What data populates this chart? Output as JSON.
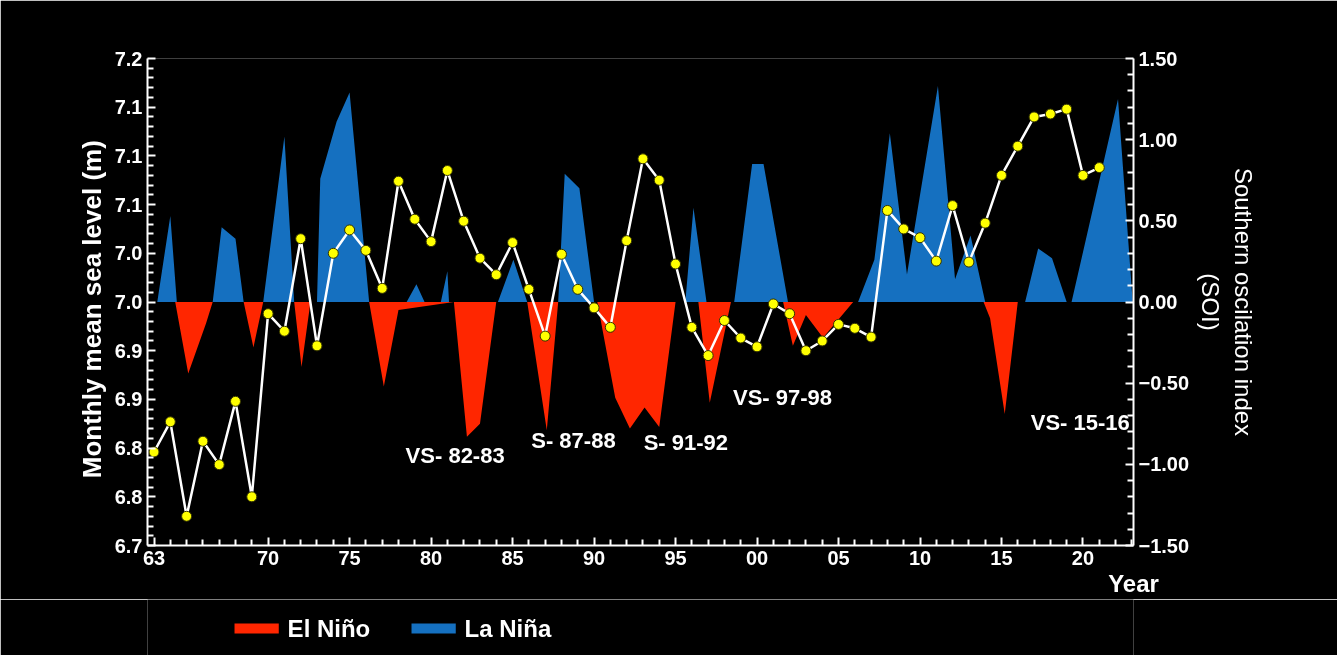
{
  "chart_data": {
    "type": "line",
    "xlabel": "Year",
    "ylabel": "Monthly  mean sea level  (m)",
    "y2label": "Southern oscilation index\n(SOI)",
    "xlim": [
      1962.6,
      2023.1
    ],
    "xticks": [
      {
        "value": 1963,
        "label": "63"
      },
      {
        "value": 1970,
        "label": "70"
      },
      {
        "value": 1975,
        "label": "75"
      },
      {
        "value": 1980,
        "label": "80"
      },
      {
        "value": 1985,
        "label": "85"
      },
      {
        "value": 1990,
        "label": "90"
      },
      {
        "value": 1995,
        "label": "95"
      },
      {
        "value": 2000,
        "label": "00"
      },
      {
        "value": 2005,
        "label": "05"
      },
      {
        "value": 2010,
        "label": "10"
      },
      {
        "value": 2015,
        "label": "15"
      },
      {
        "value": 2020,
        "label": "20"
      }
    ],
    "ylim": [
      6.7,
      7.2
    ],
    "yticks": [
      {
        "value": 6.7,
        "label": "6.7"
      },
      {
        "value": 6.75,
        "label": "6.8"
      },
      {
        "value": 6.8,
        "label": "6.8"
      },
      {
        "value": 6.85,
        "label": "6.9"
      },
      {
        "value": 6.9,
        "label": "6.9"
      },
      {
        "value": 6.95,
        "label": "7.0"
      },
      {
        "value": 7.0,
        "label": "7.0"
      },
      {
        "value": 7.05,
        "label": "7.1"
      },
      {
        "value": 7.1,
        "label": "7.1"
      },
      {
        "value": 7.15,
        "label": "7.1"
      },
      {
        "value": 7.2,
        "label": "7.2"
      }
    ],
    "y2lim": [
      -1.5,
      1.5
    ],
    "y2ticks": [
      {
        "value": -1.5,
        "label": "−1.50"
      },
      {
        "value": -1.0,
        "label": "−1.00"
      },
      {
        "value": -0.5,
        "label": "−0.50"
      },
      {
        "value": 0,
        "label": "0.00"
      },
      {
        "value": 0.5,
        "label": "0.50"
      },
      {
        "value": 1.0,
        "label": "1.00"
      },
      {
        "value": 1.5,
        "label": "1.50"
      }
    ],
    "grid": false,
    "legend": "bottom",
    "series": [
      {
        "name": "El Niño",
        "type": "area",
        "axis": "y2",
        "color": "#ff2600",
        "x": [
          1964.3,
          1965.1,
          1966.2,
          1966.6,
          1968.5,
          1969.1,
          1969.7,
          1971.6,
          1972.05,
          1972.6,
          1976.2,
          1977.1,
          1978.0,
          1981.4,
          1982.2,
          1983.0,
          1984.0,
          1985.9,
          1987.1,
          1987.8,
          1990.2,
          1991.3,
          1992.2,
          1993.1,
          1994.0,
          1995.0,
          1996.4,
          1997.1,
          1998.4,
          2001.6,
          2002.2,
          2003.0,
          2004.05,
          2005.9,
          2013.9,
          2014.3,
          2015.2,
          2016.0
        ],
        "values": [
          0,
          -0.44,
          -0.13,
          0,
          0,
          -0.28,
          0,
          0,
          -0.4,
          0,
          0,
          -0.52,
          -0.05,
          0,
          -0.83,
          -0.75,
          0,
          0,
          -0.79,
          0,
          0,
          -0.59,
          -0.78,
          -0.65,
          -0.77,
          0,
          0,
          -0.62,
          0,
          0,
          -0.27,
          -0.08,
          -0.22,
          0,
          0,
          -0.1,
          -0.69,
          0
        ]
      },
      {
        "name": "La Niña",
        "type": "area",
        "axis": "y2",
        "color": "#1570c0",
        "x": [
          1963.2,
          1964.0,
          1964.4,
          1966.6,
          1967.15,
          1968.0,
          1968.5,
          1969.7,
          1971.0,
          1971.6,
          1973.0,
          1973.2,
          1974.2,
          1975.0,
          1976.2,
          1978.5,
          1979.1,
          1979.6,
          1980.6,
          1981.0,
          1981.1,
          1984.1,
          1985.05,
          1985.9,
          1987.8,
          1988.2,
          1989.1,
          1990.0,
          1995.6,
          1996.1,
          1996.9,
          1998.6,
          1999.7,
          2000.4,
          2001.9,
          2006.2,
          2007.2,
          2008.15,
          2009.2,
          2011.1,
          2012.15,
          2013.1,
          2014.0,
          2016.45,
          2017.25,
          2018.1,
          2019.0,
          2019.3,
          2022.15,
          2023.05
        ],
        "values": [
          0,
          0.53,
          0,
          0,
          0.46,
          0.39,
          0,
          0,
          1.02,
          0,
          0,
          0.76,
          1.11,
          1.29,
          0,
          0,
          0.11,
          0,
          0,
          0.19,
          0,
          0,
          0.26,
          0,
          0,
          0.79,
          0.7,
          0,
          0,
          0.58,
          0,
          0,
          0.85,
          0.85,
          0,
          0,
          0.26,
          1.04,
          0.17,
          1.33,
          0.14,
          0.41,
          0,
          0,
          0.33,
          0.27,
          0,
          0,
          1.25,
          0
        ]
      },
      {
        "axis": "y",
        "color": "#ffffff",
        "marker": "circle",
        "line_style": "solid",
        "x": [
          1963,
          1964,
          1965,
          1966,
          1967,
          1968,
          1969,
          1970,
          1971,
          1972,
          1973,
          1974,
          1975,
          1976,
          1977,
          1978,
          1979,
          1980,
          1981,
          1982,
          1983,
          1984,
          1985,
          1986,
          1987,
          1988,
          1989,
          1990,
          1991,
          1992,
          1993,
          1994,
          1995,
          1996,
          1997,
          1998,
          1999,
          2000,
          2001,
          2002,
          2003,
          2004,
          2005,
          2006,
          2007,
          2008,
          2009,
          2010,
          2011,
          2012,
          2013,
          2014,
          2015,
          2016,
          2017,
          2018,
          2019,
          2020,
          2021
        ],
        "values": [
          6.796,
          6.827,
          6.73,
          6.807,
          6.783,
          6.848,
          6.75,
          6.938,
          6.92,
          7.015,
          6.905,
          7.0,
          7.024,
          7.003,
          6.964,
          7.074,
          7.035,
          7.012,
          7.085,
          7.033,
          6.995,
          6.978,
          7.011,
          6.963,
          6.915,
          6.999,
          6.963,
          6.944,
          6.924,
          7.013,
          7.097,
          7.075,
          6.989,
          6.924,
          6.895,
          6.931,
          6.913,
          6.904,
          6.948,
          6.938,
          6.9,
          6.91,
          6.927,
          6.923,
          6.914,
          7.044,
          7.025,
          7.016,
          6.992,
          7.049,
          6.991,
          7.031,
          7.08,
          7.11,
          7.14,
          7.143,
          7.148,
          7.08,
          7.088
        ]
      }
    ],
    "annotations": [
      "VS- 82-83",
      "S- 87-88",
      "S- 91-92",
      "VS- 97-98",
      "VS- 15-16"
    ]
  }
}
